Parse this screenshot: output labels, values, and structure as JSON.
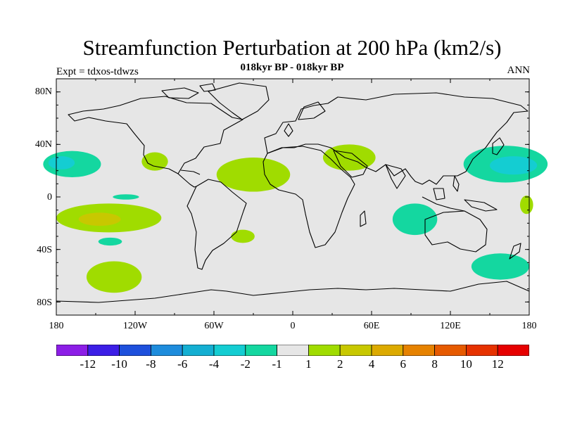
{
  "plot": {
    "title": "Streamfunction Perturbation at 200 hPa (km2/s)",
    "subtitle": "018kyr BP - 018kyr BP",
    "left_string": "Expt = tdxos-tdwzs",
    "right_string": "ANN"
  },
  "axes": {
    "lat_labels": [
      "80N",
      "40N",
      "0",
      "40S",
      "80S"
    ],
    "lat_values": [
      80,
      40,
      0,
      -40,
      -80
    ],
    "lon_labels": [
      "180",
      "120W",
      "60W",
      "0",
      "60E",
      "120E",
      "180"
    ],
    "lon_values": [
      -180,
      -120,
      -60,
      0,
      60,
      120,
      180
    ],
    "lon_range": [
      -180,
      180
    ],
    "lat_range": [
      -90,
      90
    ]
  },
  "colorbar": {
    "labels": [
      "-12",
      "-10",
      "-8",
      "-6",
      "-4",
      "-2",
      "-1",
      "1",
      "2",
      "4",
      "6",
      "8",
      "10",
      "12"
    ],
    "colors": [
      "#8c1ee6",
      "#3c1ee6",
      "#1e50dc",
      "#1e8cdc",
      "#14afd2",
      "#14cdd2",
      "#14d7a0",
      "#e6e6e6",
      "#a0dc00",
      "#c8c800",
      "#dcaa00",
      "#e68200",
      "#e65a00",
      "#e63200",
      "#e60000"
    ]
  },
  "chart_data": {
    "type": "heatmap",
    "title": "Streamfunction Perturbation at 200 hPa (km2/s)",
    "xlim": [
      -180,
      180
    ],
    "ylim": [
      -90,
      90
    ],
    "features": [
      {
        "level": "-2 to -1",
        "color": "#14d7a0",
        "lon": -168,
        "lat": 25,
        "rlon": 22,
        "rlat": 10
      },
      {
        "level": "-4 to -2",
        "color": "#14cdd2",
        "lon": -176,
        "lat": 26,
        "rlon": 10,
        "rlat": 5
      },
      {
        "level": "1 to 2",
        "color": "#a0dc00",
        "lon": -105,
        "lat": 27,
        "rlon": 10,
        "rlat": 7
      },
      {
        "level": "1 to 2",
        "color": "#a0dc00",
        "lon": -30,
        "lat": 17,
        "rlon": 28,
        "rlat": 13
      },
      {
        "level": "1 to 2",
        "color": "#a0dc00",
        "lon": 43,
        "lat": 30,
        "rlon": 20,
        "rlat": 10
      },
      {
        "level": "-2 to -1",
        "color": "#14d7a0",
        "lon": 162,
        "lat": 25,
        "rlon": 32,
        "rlat": 14
      },
      {
        "level": "-4 to -2",
        "color": "#14cdd2",
        "lon": 168,
        "lat": 24,
        "rlon": 18,
        "rlat": 7
      },
      {
        "level": "-2 to -1",
        "color": "#14d7a0",
        "lon": -127,
        "lat": 0,
        "rlon": 10,
        "rlat": 2
      },
      {
        "level": "1 to 2",
        "color": "#a0dc00",
        "lon": -140,
        "lat": -16,
        "rlon": 40,
        "rlat": 11
      },
      {
        "level": "2 to 4",
        "color": "#c8c800",
        "lon": -147,
        "lat": -17,
        "rlon": 16,
        "rlat": 5
      },
      {
        "level": "-2 to -1",
        "color": "#14d7a0",
        "lon": -139,
        "lat": -34,
        "rlon": 9,
        "rlat": 3
      },
      {
        "level": "1 to 2",
        "color": "#a0dc00",
        "lon": -38,
        "lat": -30,
        "rlon": 9,
        "rlat": 5
      },
      {
        "level": "-2 to -1",
        "color": "#14d7a0",
        "lon": 93,
        "lat": -17,
        "rlon": 17,
        "rlat": 12
      },
      {
        "level": "1 to 2",
        "color": "#a0dc00",
        "lon": -136,
        "lat": -61,
        "rlon": 21,
        "rlat": 12
      },
      {
        "level": "-2 to -1",
        "color": "#14d7a0",
        "lon": 158,
        "lat": -53,
        "rlon": 22,
        "rlat": 10
      },
      {
        "level": "1 to 2",
        "color": "#a0dc00",
        "lon": 178,
        "lat": -6,
        "rlon": 5,
        "rlat": 7
      }
    ]
  }
}
